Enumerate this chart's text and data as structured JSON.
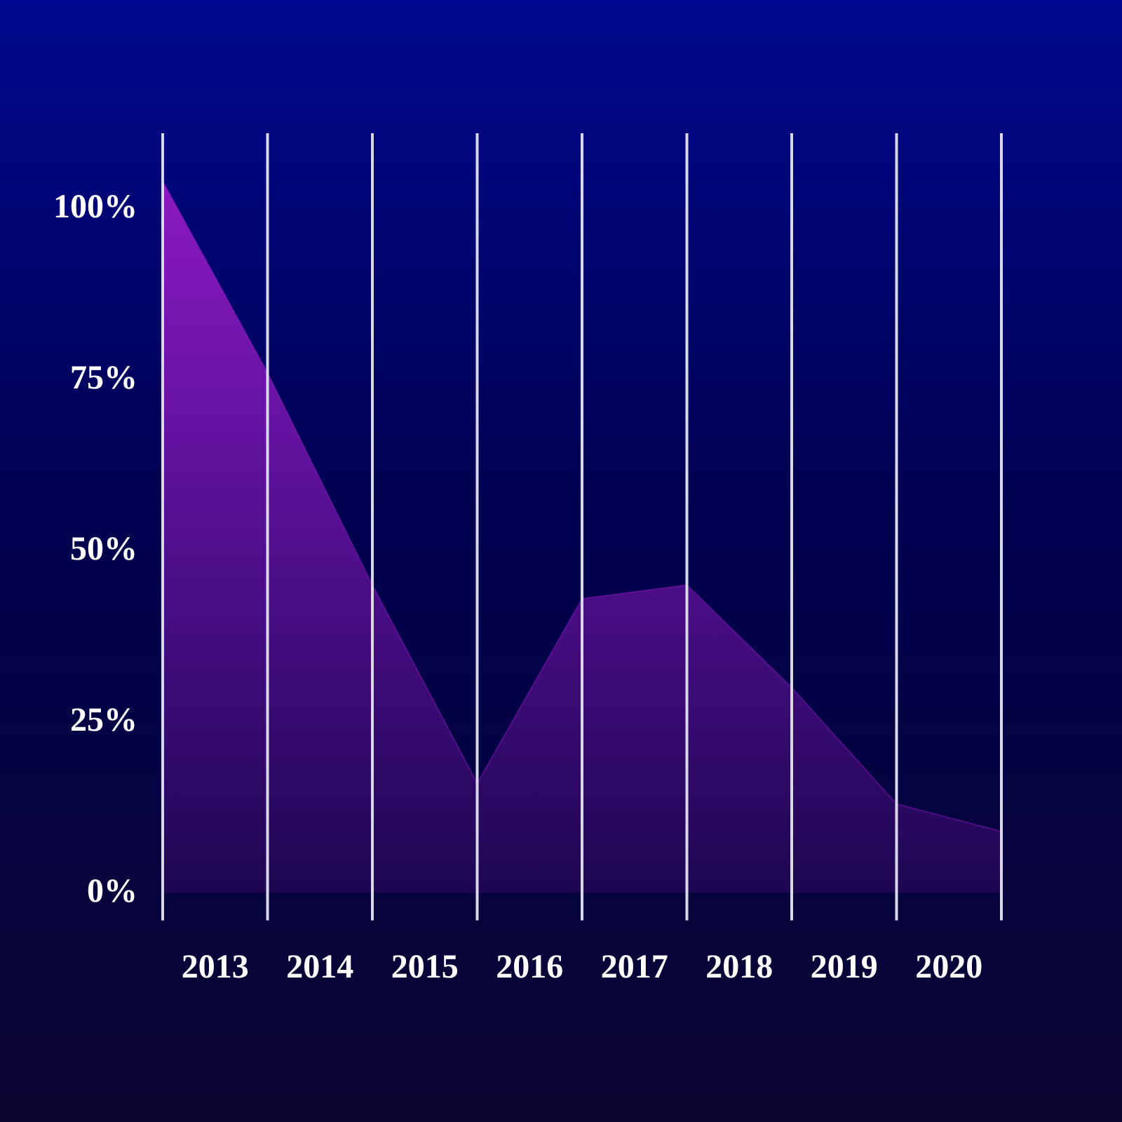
{
  "chart_data": {
    "type": "area",
    "x": [
      2012.5,
      2013.5,
      2014.5,
      2015.5,
      2016.5,
      2017.5,
      2018.5,
      2019.5,
      2020.5
    ],
    "series": [
      {
        "color": "#9c1cc8",
        "values": [
          104,
          76,
          45,
          16,
          43,
          45,
          30,
          13,
          9
        ]
      }
    ],
    "xlim": [
      2012.5,
      2020.5
    ],
    "xticks": [
      2013,
      2014,
      2015,
      2016,
      2017,
      2018,
      2019,
      2020
    ],
    "ylim": [
      -4,
      111
    ],
    "yticks": [
      {
        "value": 0,
        "label": "0%"
      },
      {
        "value": 25,
        "label": "25%"
      },
      {
        "value": 50,
        "label": "50%"
      },
      {
        "value": 75,
        "label": "75%"
      },
      {
        "value": 100,
        "label": "100%"
      }
    ],
    "ref_lines": [
      {
        "axis": "x",
        "value": 2012.5,
        "color": "#d8d8e8"
      },
      {
        "axis": "x",
        "value": 2013.5,
        "color": "#d8d8e8"
      },
      {
        "axis": "x",
        "value": 2014.5,
        "color": "#d8d8e8"
      },
      {
        "axis": "x",
        "value": 2015.5,
        "color": "#d8d8e8"
      },
      {
        "axis": "x",
        "value": 2016.5,
        "color": "#d8d8e8"
      },
      {
        "axis": "x",
        "value": 2017.5,
        "color": "#d8d8e8"
      },
      {
        "axis": "x",
        "value": 2018.5,
        "color": "#d8d8e8"
      },
      {
        "axis": "x",
        "value": 2019.5,
        "color": "#d8d8e8"
      },
      {
        "axis": "x",
        "value": 2020.5,
        "color": "#d8d8e8"
      }
    ],
    "grid": false,
    "legend": false
  }
}
